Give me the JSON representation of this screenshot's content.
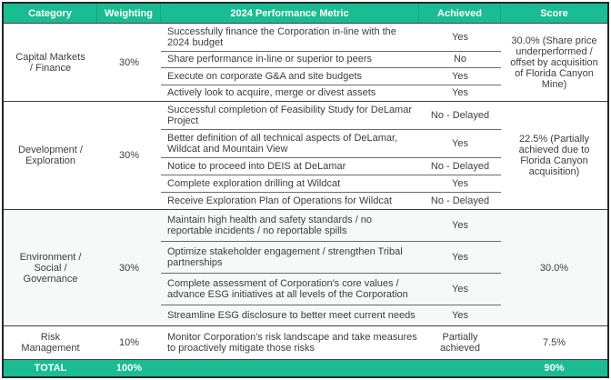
{
  "colors": {
    "accent_teal": "#1abc92",
    "header_text": "#ffffff",
    "body_text": "#3d3d3d",
    "section_border": "#3f3f3f",
    "row_separator": "#6b6b6b"
  },
  "table": {
    "header": [
      "Category",
      "Weighting",
      "2024 Performance Metric",
      "Achieved",
      "Score"
    ],
    "sections": [
      {
        "category": "Capital Markets\n/ Finance",
        "weighting": "30%",
        "score": "30.0% (Share price underperformed / offset by acquisition of Florida Canyon Mine)",
        "metrics": [
          {
            "text": "Successfully finance the Corporation in-line with the 2024 budget",
            "achieved": "Yes"
          },
          {
            "text": "Share performance in-line or superior to peers",
            "achieved": "No"
          },
          {
            "text": "Execute on corporate G&A and site budgets",
            "achieved": "Yes"
          },
          {
            "text": "Actively look to acquire, merge or divest assets",
            "achieved": "Yes"
          }
        ]
      },
      {
        "category": "Development /\nExploration",
        "weighting": "30%",
        "score": "22.5% (Partially achieved due to Florida Canyon acquisition)",
        "metrics": [
          {
            "text": "Successful completion of Feasibility Study for DeLamar Project",
            "achieved": "No - Delayed"
          },
          {
            "text": "Better definition of all technical aspects of DeLamar, Wildcat and Mountain View",
            "achieved": "Yes"
          },
          {
            "text": "Notice to proceed into DEIS at DeLamar",
            "achieved": "No - Delayed"
          },
          {
            "text": "Complete exploration drilling at Wildcat",
            "achieved": "Yes"
          },
          {
            "text": "Receive Exploration Plan of Operations for Wildcat",
            "achieved": "No - Delayed"
          }
        ]
      },
      {
        "category": "Environment /\nSocial /\nGovernance",
        "weighting": "30%",
        "score": "30.0%",
        "metrics": [
          {
            "text": "Maintain high health and safety standards / no reportable incidents / no reportable spills",
            "achieved": "Yes"
          },
          {
            "text": "Optimize stakeholder engagement / strengthen Tribal partnerships",
            "achieved": "Yes"
          },
          {
            "text": "Complete assessment of Corporation's core values / advance ESG initiatives at all levels of the Corporation",
            "achieved": "Yes"
          },
          {
            "text": "Streamline ESG disclosure to better meet current needs",
            "achieved": "Yes"
          }
        ]
      },
      {
        "category": "Risk\nManagement",
        "weighting": "10%",
        "score": "7.5%",
        "metrics": [
          {
            "text": "Monitor Corporation's risk landscape and take measures to proactively mitigate those risks",
            "achieved": "Partially\nachieved"
          }
        ]
      }
    ],
    "total": {
      "label": "TOTAL",
      "weighting": "100%",
      "score": "90%"
    }
  }
}
